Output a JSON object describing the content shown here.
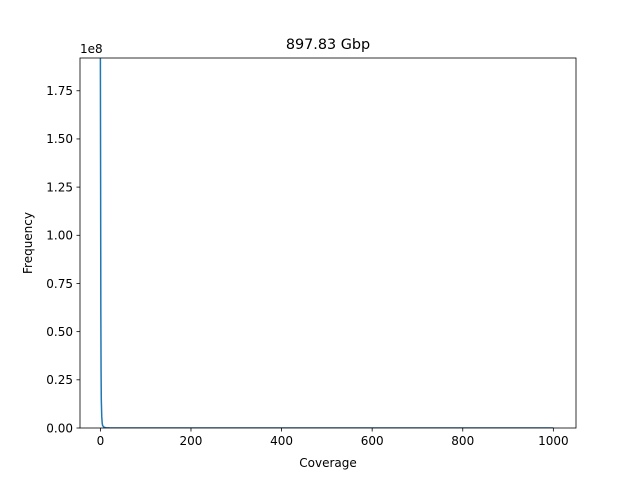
{
  "chart_data": {
    "type": "line",
    "title": "897.83 Gbp",
    "xlabel": "Coverage",
    "ylabel": "Frequency",
    "y_offset_text": "1e8",
    "xlim": [
      -45,
      1050
    ],
    "ylim": [
      0,
      192000000.0
    ],
    "xticks": [
      0,
      200,
      400,
      600,
      800,
      1000
    ],
    "xtick_labels": [
      "0",
      "200",
      "400",
      "600",
      "800",
      "1000"
    ],
    "yticks": [
      0,
      25000000.0,
      50000000.0,
      75000000.0,
      100000000.0,
      125000000.0,
      150000000.0,
      175000000.0
    ],
    "ytick_labels": [
      "0.00",
      "0.25",
      "0.50",
      "0.75",
      "1.00",
      "1.25",
      "1.50",
      "1.75"
    ],
    "grid": false,
    "legend": false,
    "line_color": "#1f77b4",
    "series": [
      {
        "x": [
          0,
          0.5,
          1,
          1.5,
          2,
          3,
          4,
          5,
          8,
          12,
          20,
          50,
          100,
          200,
          400,
          600,
          800,
          1000
        ],
        "values": [
          192000000.0,
          130000000.0,
          60000000.0,
          30000000.0,
          15000000.0,
          6000000.0,
          2500000.0,
          1200000.0,
          400000.0,
          150000.0,
          60000.0,
          20000.0,
          10000.0,
          5000.0,
          2000.0,
          1000.0,
          500,
          200
        ]
      }
    ]
  }
}
